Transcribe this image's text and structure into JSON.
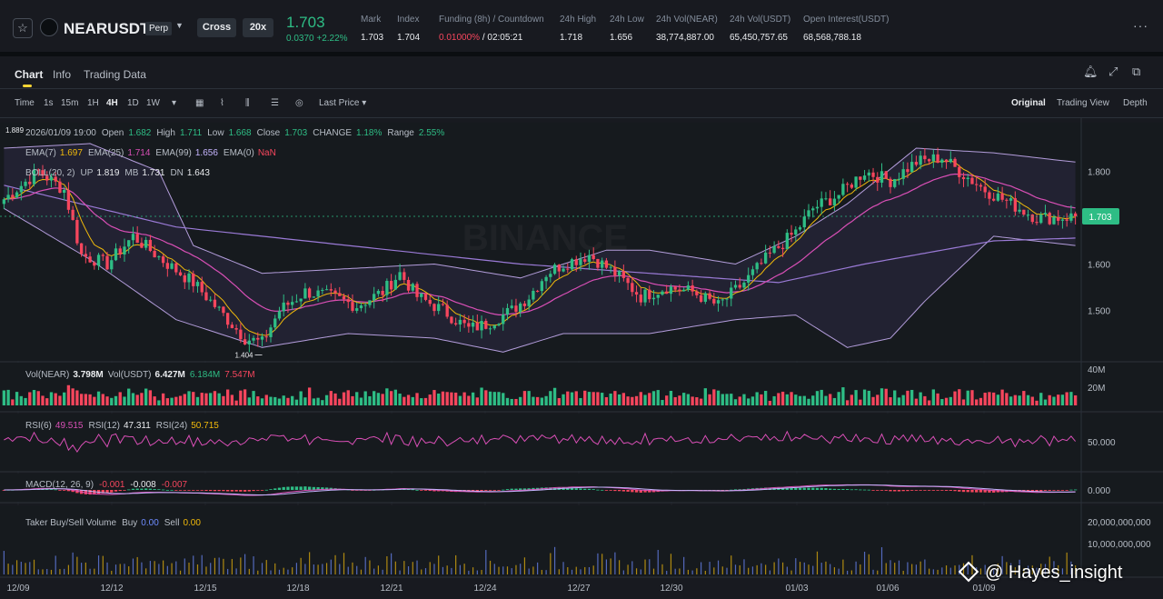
{
  "header": {
    "symbol": "NEARUSDT",
    "contract_type": "Perp",
    "margin_mode": "Cross",
    "leverage": "20x",
    "last_price": "1.703",
    "change": "0.0370 +2.22%",
    "stats": [
      {
        "label": "Mark",
        "value": "1.703"
      },
      {
        "label": "Index",
        "value": "1.704"
      },
      {
        "label": "Funding (8h) / Countdown",
        "value": "0.01000%",
        "value2": " / 02:05:21"
      },
      {
        "label": "24h High",
        "value": "1.718"
      },
      {
        "label": "24h Low",
        "value": "1.656"
      },
      {
        "label": "24h Vol(NEAR)",
        "value": "38,774,887.00"
      },
      {
        "label": "24h Vol(USDT)",
        "value": "65,450,757.65"
      },
      {
        "label": "Open Interest(USDT)",
        "value": "68,568,788.18"
      }
    ]
  },
  "tabs": [
    "Chart",
    "Info",
    "Trading Data"
  ],
  "toolbar": {
    "time_label": "Time",
    "intervals": [
      "1s",
      "15m",
      "1H",
      "4H",
      "1D",
      "1W"
    ],
    "active_interval": "4H",
    "price_type": "Last Price",
    "views": [
      "Original",
      "Trading View",
      "Depth"
    ],
    "active_view": "Original"
  },
  "legend": {
    "ohlc": {
      "date": "2026/01/09 19:00",
      "open": "1.682",
      "high": "1.711",
      "low": "1.668",
      "close": "1.703",
      "change": "1.18%",
      "range": "2.55%"
    },
    "ema": {
      "ema7": "1.697",
      "ema25": "1.714",
      "ema99": "1.656",
      "ema0": "NaN"
    },
    "boll": {
      "label": "BOLL(20, 2)",
      "up": "1.819",
      "mb": "1.731",
      "dn": "1.643"
    },
    "vol": {
      "vol_near": "3.798M",
      "vol_usdt": "6.427M",
      "ma5": "6.184M",
      "ma10": "7.547M"
    },
    "rsi": {
      "rsi6": "49.515",
      "rsi12": "47.311",
      "rsi24": "50.715"
    },
    "macd": {
      "label": "MACD(12, 26, 9)",
      "dif": "-0.001",
      "dea": "-0.008",
      "hist": "-0.007"
    },
    "taker": {
      "label": "Taker Buy/Sell Volume",
      "buy": "0.00",
      "sell": "0.00"
    }
  },
  "colors": {
    "up": "#2ebd85",
    "down": "#f6465d",
    "ema7": "#f0b90b",
    "ema25": "#d94fb6",
    "ema99": "#9a7ad6",
    "boll": "#b39ddb",
    "accent": "#fcd535"
  },
  "chart_data": {
    "type": "candlestick",
    "interval": "4H",
    "x_tick_labels": [
      "12/09",
      "12/12",
      "12/15",
      "12/18",
      "12/21",
      "12/24",
      "12/27",
      "12/30",
      "01/03",
      "01/06",
      "01/09"
    ],
    "y_tick_labels": [
      "1.800",
      "1.700",
      "1.600",
      "1.500"
    ],
    "ylim": [
      1.395,
      1.905
    ],
    "current_price": 1.703,
    "marked_high": {
      "label": "1.889",
      "value": 1.889
    },
    "marked_low": {
      "label": "1.404",
      "value": 1.404
    },
    "close_path": [
      [
        0,
        1.74
      ],
      [
        8,
        1.8
      ],
      [
        14,
        1.76
      ],
      [
        18,
        1.62
      ],
      [
        24,
        1.6
      ],
      [
        30,
        1.66
      ],
      [
        34,
        1.63
      ],
      [
        38,
        1.6
      ],
      [
        44,
        1.56
      ],
      [
        50,
        1.5
      ],
      [
        56,
        1.44
      ],
      [
        60,
        1.43
      ],
      [
        64,
        1.5
      ],
      [
        70,
        1.54
      ],
      [
        76,
        1.53
      ],
      [
        82,
        1.51
      ],
      [
        88,
        1.54
      ],
      [
        92,
        1.58
      ],
      [
        96,
        1.53
      ],
      [
        102,
        1.5
      ],
      [
        108,
        1.46
      ],
      [
        112,
        1.47
      ],
      [
        118,
        1.5
      ],
      [
        122,
        1.53
      ],
      [
        126,
        1.58
      ],
      [
        130,
        1.6
      ],
      [
        136,
        1.62
      ],
      [
        142,
        1.58
      ],
      [
        148,
        1.53
      ],
      [
        154,
        1.55
      ],
      [
        160,
        1.54
      ],
      [
        166,
        1.51
      ],
      [
        172,
        1.56
      ],
      [
        178,
        1.62
      ],
      [
        184,
        1.67
      ],
      [
        188,
        1.72
      ],
      [
        194,
        1.75
      ],
      [
        200,
        1.8
      ],
      [
        206,
        1.78
      ],
      [
        212,
        1.82
      ],
      [
        218,
        1.83
      ],
      [
        222,
        1.8
      ],
      [
        228,
        1.76
      ],
      [
        234,
        1.73
      ],
      [
        240,
        1.7
      ],
      [
        245,
        1.7
      ],
      [
        249,
        1.703
      ]
    ],
    "boll_up_path": [
      [
        0,
        1.85
      ],
      [
        20,
        1.86
      ],
      [
        36,
        1.8
      ],
      [
        44,
        1.64
      ],
      [
        60,
        1.58
      ],
      [
        80,
        1.59
      ],
      [
        100,
        1.6
      ],
      [
        120,
        1.57
      ],
      [
        140,
        1.63
      ],
      [
        150,
        1.63
      ],
      [
        170,
        1.6
      ],
      [
        184,
        1.66
      ],
      [
        196,
        1.73
      ],
      [
        212,
        1.85
      ],
      [
        230,
        1.84
      ],
      [
        249,
        1.82
      ]
    ],
    "boll_dn_path": [
      [
        0,
        1.72
      ],
      [
        20,
        1.61
      ],
      [
        40,
        1.48
      ],
      [
        60,
        1.42
      ],
      [
        80,
        1.45
      ],
      [
        100,
        1.44
      ],
      [
        116,
        1.41
      ],
      [
        130,
        1.45
      ],
      [
        150,
        1.45
      ],
      [
        170,
        1.48
      ],
      [
        184,
        1.49
      ],
      [
        196,
        1.42
      ],
      [
        206,
        1.44
      ],
      [
        214,
        1.52
      ],
      [
        230,
        1.66
      ],
      [
        249,
        1.64
      ]
    ],
    "ema99_path": [
      [
        0,
        1.77
      ],
      [
        40,
        1.68
      ],
      [
        80,
        1.64
      ],
      [
        120,
        1.6
      ],
      [
        150,
        1.58
      ],
      [
        180,
        1.56
      ],
      [
        200,
        1.6
      ],
      [
        230,
        1.65
      ],
      [
        249,
        1.656
      ]
    ],
    "volume_axis_labels": [
      "40M",
      "20M"
    ],
    "rsi_axis_label": "50.000",
    "macd_axis_label": "0.000",
    "taker_axis_labels": [
      "20,000,000,000",
      "10,000,000,000"
    ]
  }
}
